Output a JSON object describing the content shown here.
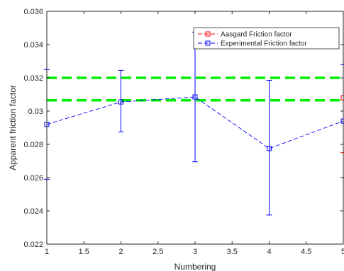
{
  "chart_data": {
    "type": "line",
    "xlabel": "Numbering",
    "ylabel": "Apparent friction factor",
    "xlim": [
      1,
      5
    ],
    "ylim": [
      0.022,
      0.036
    ],
    "x_ticks": [
      "1",
      "1.5",
      "2",
      "2.5",
      "3",
      "3.5",
      "4",
      "4.5",
      "5"
    ],
    "y_ticks": [
      "0.022",
      "0.024",
      "0.026",
      "0.028",
      "0.03",
      "0.032",
      "0.034",
      "0.036"
    ],
    "grid": false,
    "legend_position": "top-right",
    "reference_lines": [
      {
        "y": 0.032,
        "color": "#00ee00"
      },
      {
        "y": 0.03065,
        "color": "#00ee00"
      }
    ],
    "series": [
      {
        "name": "Aasgard Friction factor",
        "color": "#ff0000",
        "x": [
          5
        ],
        "y": [
          0.0308
        ],
        "err_low": [
          0.0033
        ],
        "err_high": [
          0.0032
        ]
      },
      {
        "name": "Experimental Friction factor",
        "color": "#0000ff",
        "x": [
          1,
          2,
          3,
          4,
          5
        ],
        "y": [
          0.0292,
          0.03055,
          0.03085,
          0.02775,
          0.0294
        ],
        "err_low": [
          0.0033,
          0.0018,
          0.0039,
          0.004,
          0.0034
        ],
        "err_high": [
          0.0033,
          0.0019,
          0.0039,
          0.0041,
          0.0034
        ]
      }
    ]
  }
}
